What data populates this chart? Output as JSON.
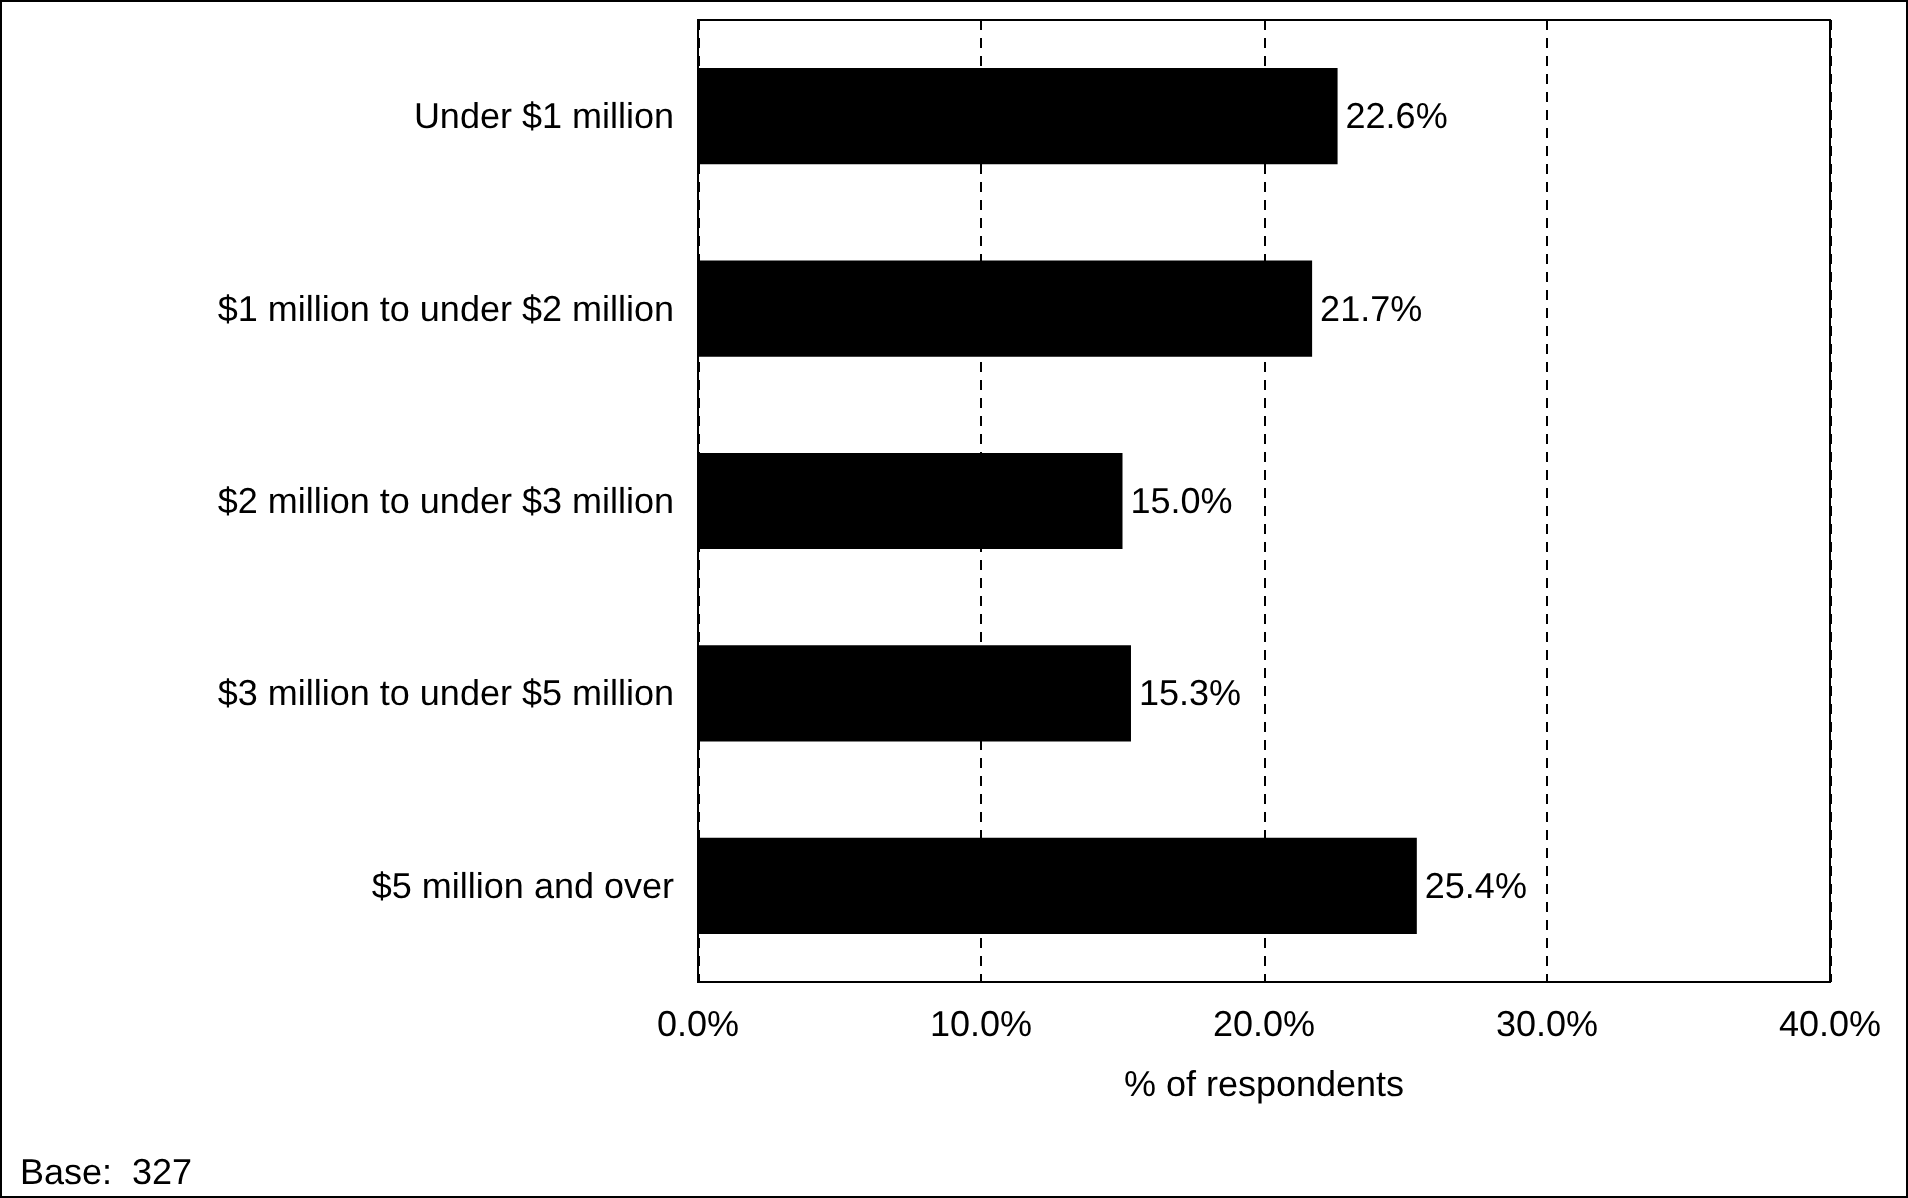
{
  "chart_data": {
    "type": "bar",
    "orientation": "horizontal",
    "xlabel": "% of respondents",
    "categories": [
      "Under $1 million",
      "$1 million to under $2 million",
      "$2 million to under $3 million",
      "$3 million to under $5 million",
      "$5 million and over"
    ],
    "values": [
      22.6,
      21.7,
      15.0,
      15.3,
      25.4
    ],
    "value_labels": [
      "22.6%",
      "21.7%",
      "15.0%",
      "15.3%",
      "25.4%"
    ],
    "color": "#000000",
    "xlim": [
      0,
      40
    ],
    "xticks": [
      {
        "value": 0,
        "label": "0.0%"
      },
      {
        "value": 10,
        "label": "10.0%"
      },
      {
        "value": 20,
        "label": "20.0%"
      },
      {
        "value": 30,
        "label": "30.0%"
      },
      {
        "value": 40,
        "label": "40.0%"
      }
    ],
    "grid": "x",
    "annotations": [
      "Base:  327"
    ]
  }
}
